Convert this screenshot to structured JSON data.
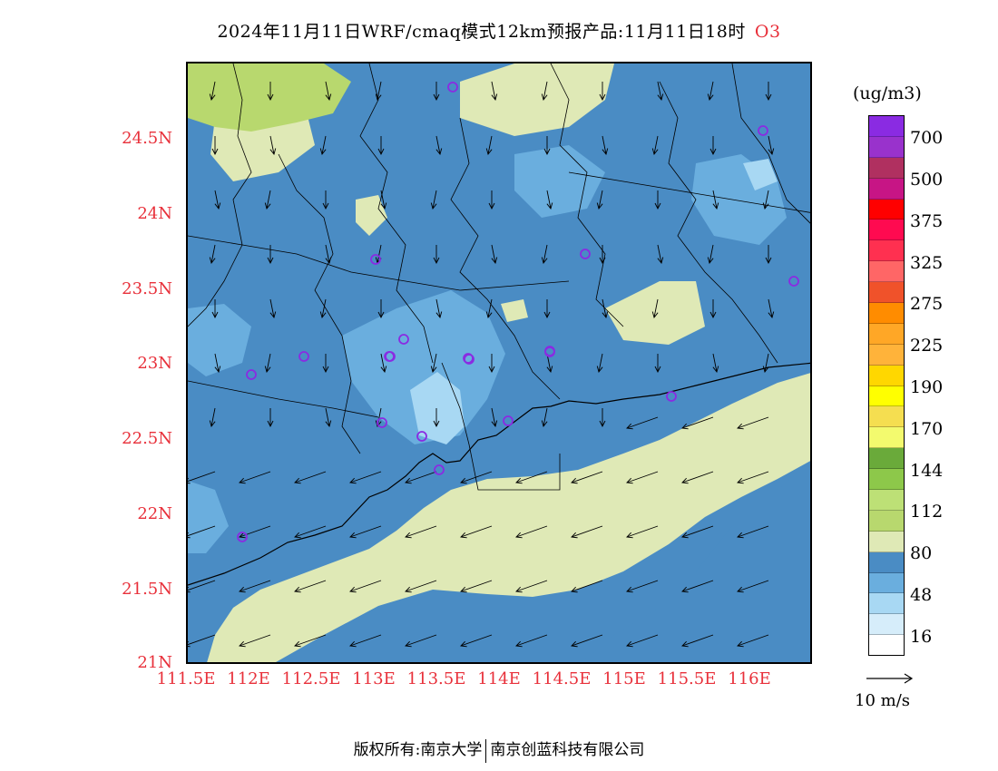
{
  "title": {
    "text": "2024年11月11日WRF/cmaq模式12km预报产品:11月11日18时",
    "species": "O3",
    "species_color": "#e8303a"
  },
  "axes": {
    "lat_ticks": [
      "24.5N",
      "24N",
      "23.5N",
      "23N",
      "22.5N",
      "22N",
      "21.5N",
      "21N"
    ],
    "lon_ticks": [
      "111.5E",
      "112E",
      "112.5E",
      "113E",
      "113.5E",
      "114E",
      "114.5E",
      "115E",
      "115.5E",
      "116E"
    ],
    "tick_color": "#e8303a"
  },
  "colorbar": {
    "unit": "(ug/m3)",
    "colors_top_to_bottom": [
      "#8a2be2",
      "#9932cc",
      "#b03060",
      "#c71585",
      "#ff0000",
      "#ff0a50",
      "#ff3050",
      "#ff6666",
      "#f0522a",
      "#ff8c00",
      "#ffa726",
      "#ffb33a",
      "#ffd700",
      "#ffff00",
      "#f5de50",
      "#f3fa6e",
      "#6aaa3a",
      "#8dc84a",
      "#bde076",
      "#b8d86e",
      "#dfe9b6",
      "#4a8cc4",
      "#6aaede",
      "#a8d8f3",
      "#d6edfa",
      "#ffffff"
    ],
    "labels": [
      "700",
      "500",
      "375",
      "325",
      "275",
      "225",
      "190",
      "170",
      "144",
      "112",
      "80",
      "48",
      "16"
    ]
  },
  "wind": {
    "ref_label": "10 m/s"
  },
  "map": {
    "land_color": "#4a8cc4",
    "sea_color": "#dfe9b6",
    "sites": 20
  },
  "footer": {
    "left": "版权所有:南京大学",
    "right": "南京创蓝科技有限公司"
  }
}
